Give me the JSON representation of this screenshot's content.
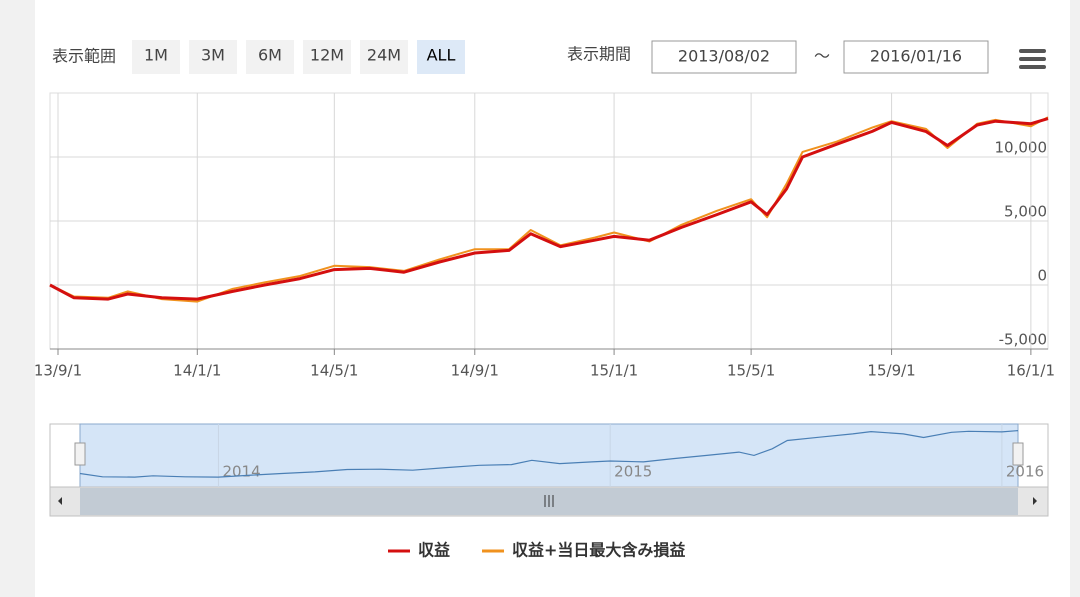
{
  "controls": {
    "range_label": "表示範囲",
    "buttons": [
      "1M",
      "3M",
      "6M",
      "12M",
      "24M",
      "ALL"
    ],
    "period_label": "表示期間",
    "from": "2013/08/02",
    "separator": "～",
    "to": "2016/01/16"
  },
  "chart_data": {
    "type": "line",
    "x": [
      "2013-08-25",
      "2013-09-15",
      "2013-10-15",
      "2013-11-01",
      "2013-12-01",
      "2014-01-01",
      "2014-02-01",
      "2014-03-01",
      "2014-04-01",
      "2014-05-01",
      "2014-06-01",
      "2014-07-01",
      "2014-08-01",
      "2014-09-01",
      "2014-10-01",
      "2014-10-20",
      "2014-11-15",
      "2014-12-15",
      "2015-01-01",
      "2015-02-01",
      "2015-03-01",
      "2015-04-01",
      "2015-05-01",
      "2015-05-15",
      "2015-06-01",
      "2015-06-15",
      "2015-07-15",
      "2015-08-15",
      "2015-09-01",
      "2015-10-01",
      "2015-10-20",
      "2015-11-15",
      "2015-12-01",
      "2016-01-01",
      "2016-01-16"
    ],
    "series": [
      {
        "name": "収益",
        "color": "#d40f0f",
        "values": [
          0,
          -1000,
          -1100,
          -700,
          -1000,
          -1100,
          -500,
          0,
          500,
          1200,
          1300,
          1000,
          1800,
          2500,
          2700,
          4000,
          3000,
          3500,
          3800,
          3500,
          4500,
          5500,
          6500,
          5500,
          7500,
          10000,
          11000,
          12000,
          12700,
          12000,
          10900,
          12500,
          12800,
          12600,
          13000
        ]
      },
      {
        "name": "収益+当日最大含み損益",
        "color": "#f0921e",
        "values": [
          0,
          -900,
          -1000,
          -500,
          -1100,
          -1300,
          -300,
          200,
          700,
          1500,
          1400,
          1100,
          2000,
          2800,
          2800,
          4300,
          3100,
          3700,
          4100,
          3400,
          4700,
          5800,
          6700,
          5300,
          7900,
          10400,
          11200,
          12300,
          12800,
          12200,
          10700,
          12600,
          12900,
          12400,
          13100
        ]
      }
    ],
    "xlim": [
      "2013-08-25",
      "2016-01-16"
    ],
    "xticks": [
      {
        "value": "2013-09-01",
        "label": "13/9/1"
      },
      {
        "value": "2014-01-01",
        "label": "14/1/1"
      },
      {
        "value": "2014-05-01",
        "label": "14/5/1"
      },
      {
        "value": "2014-09-01",
        "label": "14/9/1"
      },
      {
        "value": "2015-01-01",
        "label": "15/1/1"
      },
      {
        "value": "2015-05-01",
        "label": "15/5/1"
      },
      {
        "value": "2015-09-01",
        "label": "15/9/1"
      },
      {
        "value": "2016-01-01",
        "label": "16/1/1"
      }
    ],
    "ylim": [
      -5000,
      15000
    ],
    "yticks": [
      {
        "value": -5000,
        "label": "-5,000"
      },
      0,
      {
        "value": 5000,
        "label": "5,000"
      },
      {
        "value": 10000,
        "label": "10,000"
      }
    ],
    "grid": true,
    "navigator_ticks": [
      {
        "value": "2014-01-01",
        "label": "2014"
      },
      {
        "value": "2015-01-01",
        "label": "2015"
      },
      {
        "value": "2016-01-01",
        "label": "2016"
      }
    ]
  }
}
